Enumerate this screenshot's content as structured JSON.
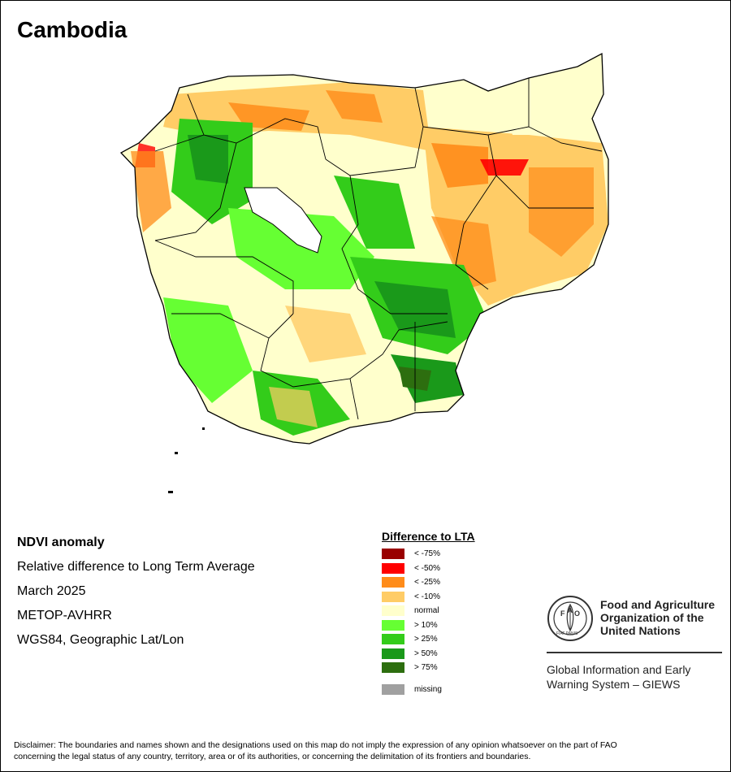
{
  "map": {
    "title": "Cambodia"
  },
  "info": {
    "heading": "NDVI anomaly",
    "line1": "Relative difference to Long Term Average",
    "date": "March 2025",
    "sensor": "METOP-AVHRR",
    "projection": "WGS84, Geographic Lat/Lon"
  },
  "legend": {
    "title": "Difference to LTA",
    "items": [
      {
        "label": "< -75%",
        "color": "#990000"
      },
      {
        "label": "< -50%",
        "color": "#ff0000"
      },
      {
        "label": "< -25%",
        "color": "#ff8c1a"
      },
      {
        "label": "< -10%",
        "color": "#ffcc66"
      },
      {
        "label": "normal",
        "color": "#ffffcc"
      },
      {
        "label": "> 10%",
        "color": "#66ff33"
      },
      {
        "label": "> 25%",
        "color": "#33cc1a"
      },
      {
        "label": "> 50%",
        "color": "#1a991a"
      },
      {
        "label": "> 75%",
        "color": "#2d6e0f"
      }
    ],
    "missing": {
      "label": "missing",
      "color": "#a0a0a0"
    }
  },
  "fao": {
    "logo_text": "FIAT PANIS",
    "logo_letters": "FAO",
    "name_line1": "Food and Agriculture",
    "name_line2": "Organization of the",
    "name_line3": "United Nations",
    "giews_line1": "Global Information and Early",
    "giews_line2": "Warning System – GIEWS"
  },
  "disclaimer": {
    "line1": "Disclaimer: The boundaries and names shown and the designations used on this map do not imply the expression of any opinion whatsoever on the part of FAO",
    "line2": "concerning the legal status of any country, territory, area or of its authorities, or concerning the delimitation of its frontiers and boundaries."
  }
}
